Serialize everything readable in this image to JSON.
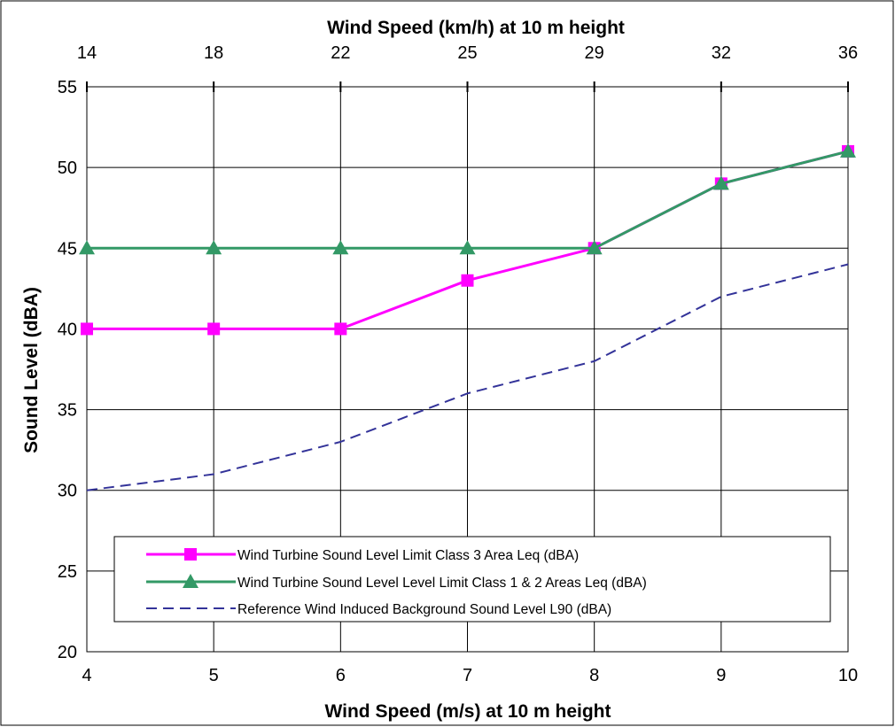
{
  "chart_data": {
    "type": "line",
    "x": [
      4,
      5,
      6,
      7,
      8,
      9,
      10
    ],
    "x_tick_labels": [
      "4",
      "5",
      "6",
      "7",
      "8",
      "9",
      "10"
    ],
    "x_top_tick_labels": [
      "14",
      "18",
      "22",
      "25",
      "29",
      "32",
      "36"
    ],
    "xlabel": "Wind Speed (m/s) at 10 m height",
    "x2label": "Wind Speed (km/h) at 10 m height",
    "ylabel": "Sound Level (dBA)",
    "xlim": [
      4,
      10
    ],
    "ylim": [
      20,
      55
    ],
    "y_ticks": [
      20,
      25,
      30,
      35,
      40,
      45,
      50,
      55
    ],
    "grid": true,
    "legend_position": "lower-center",
    "series": [
      {
        "name": "Wind Turbine Sound Level Limit Class 3 Area Leq (dBA)",
        "values": [
          40,
          40,
          40,
          43,
          45,
          49,
          51
        ],
        "color": "#ff00ff",
        "marker": "square",
        "line_style": "solid"
      },
      {
        "name": "Wind Turbine Sound Level Level Limit Class 1 & 2 Areas Leq (dBA)",
        "values": [
          45,
          45,
          45,
          45,
          45,
          49,
          51
        ],
        "color": "#339966",
        "marker": "triangle",
        "line_style": "solid"
      },
      {
        "name": "Reference Wind Induced Background Sound Level L90 (dBA)",
        "values": [
          30,
          31,
          33,
          36,
          38,
          42,
          44
        ],
        "color": "#333399",
        "marker": "none",
        "line_style": "dashed"
      }
    ]
  }
}
